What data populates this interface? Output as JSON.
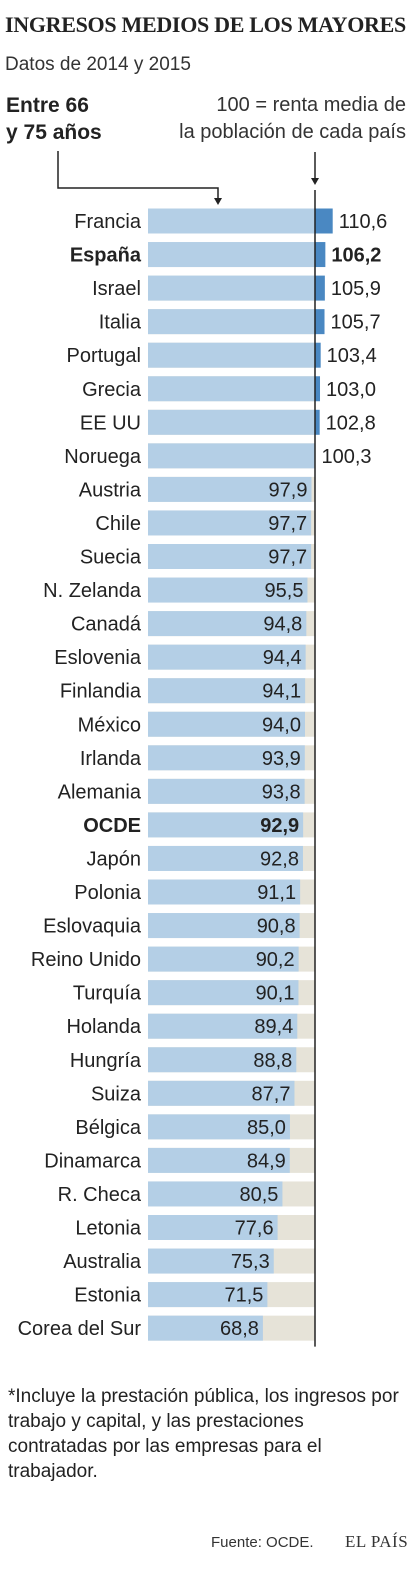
{
  "title": "INGRESOS MEDIOS DE LOS MAYORES",
  "subtitle": "Datos de 2014 y 2015",
  "group_label": "Entre 66\ny 75 años",
  "reference_note": "100 = renta media de\nla población de cada país",
  "footnote": "*Incluye la prestación pública, los ingresos por trabajo y capital, y las prestaciones contratadas por las empresas para el trabajador.",
  "source": "Fuente: OCDE.",
  "brand": "EL PAÍS",
  "colors": {
    "bar": "#b4cfe6",
    "bar_over_100": "#4a88c2",
    "track": "#e6e3d8",
    "reference_line": "#222222",
    "text": "#222222"
  },
  "chart_data": {
    "type": "bar",
    "orientation": "horizontal",
    "reference_value": 100,
    "decimal_separator": ",",
    "categories": [
      "Francia",
      "España",
      "Israel",
      "Italia",
      "Portugal",
      "Grecia",
      "EE UU",
      "Noruega",
      "Austria",
      "Chile",
      "Suecia",
      "N. Zelanda",
      "Canadá",
      "Eslovenia",
      "Finlandia",
      "México",
      "Irlanda",
      "Alemania",
      "OCDE",
      "Japón",
      "Polonia",
      "Eslovaquia",
      "Reino Unido",
      "Turquía",
      "Holanda",
      "Hungría",
      "Suiza",
      "Bélgica",
      "Dinamarca",
      "R. Checa",
      "Letonia",
      "Australia",
      "Estonia",
      "Corea del Sur"
    ],
    "values": [
      110.6,
      106.2,
      105.9,
      105.7,
      103.4,
      103.0,
      102.8,
      100.3,
      97.9,
      97.7,
      97.7,
      95.5,
      94.8,
      94.4,
      94.1,
      94.0,
      93.9,
      93.8,
      92.9,
      92.8,
      91.1,
      90.8,
      90.2,
      90.1,
      89.4,
      88.8,
      87.7,
      85.0,
      84.9,
      80.5,
      77.6,
      75.3,
      71.5,
      68.8
    ],
    "highlighted": [
      "España",
      "OCDE"
    ]
  }
}
